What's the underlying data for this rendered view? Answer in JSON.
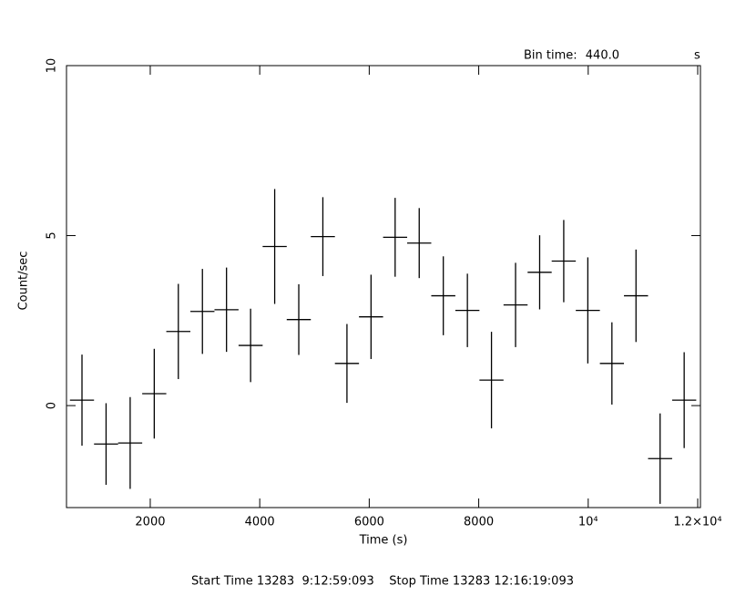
{
  "chart_data": {
    "type": "errorbar",
    "xlabel": "Time (s)",
    "ylabel": "Count/sec",
    "bin_label": "Bin time:",
    "bin_value": "440.0",
    "bin_unit": "s",
    "footer": "Start Time 13283  9:12:59:093    Stop Time 13283 12:16:19:093",
    "color": "#000000",
    "x": [
      753,
      1193,
      1633,
      2073,
      2513,
      2953,
      3393,
      3833,
      4273,
      4713,
      5153,
      5593,
      6033,
      6473,
      6913,
      7353,
      7793,
      8233,
      8673,
      9113,
      9553,
      9993,
      10433,
      10873,
      11313,
      11753
    ],
    "xerr": 220,
    "values": [
      0.16,
      -1.13,
      -1.1,
      0.35,
      2.18,
      2.77,
      2.82,
      1.77,
      4.68,
      2.53,
      4.97,
      1.24,
      2.61,
      4.95,
      4.78,
      3.23,
      2.8,
      0.75,
      2.96,
      3.92,
      4.25,
      2.8,
      1.24,
      3.23,
      -1.56,
      0.16
    ],
    "yerr": [
      1.34,
      1.2,
      1.35,
      1.32,
      1.4,
      1.25,
      1.24,
      1.08,
      1.69,
      1.04,
      1.16,
      1.16,
      1.24,
      1.16,
      1.03,
      1.16,
      1.08,
      1.42,
      1.24,
      1.09,
      1.21,
      1.56,
      1.21,
      1.36,
      1.33,
      1.41
    ],
    "xlim": [
      470,
      12050
    ],
    "ylim": [
      -3,
      10
    ],
    "xticks": [
      2000,
      4000,
      6000,
      8000,
      {
        "value": 10000,
        "label": "10⁴"
      },
      {
        "value": 12000,
        "label": "1.2×10⁴"
      }
    ],
    "yticks": [
      0,
      5,
      10
    ]
  }
}
